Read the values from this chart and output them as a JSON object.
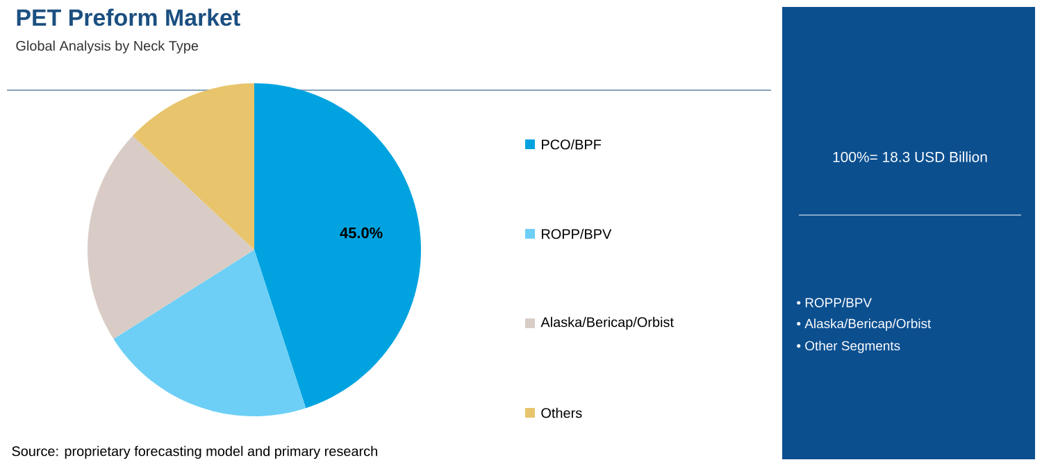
{
  "chart_data": {
    "type": "pie",
    "title": "PET Preform Market",
    "subtitle": "Global Analysis by Neck Type",
    "categories": [
      "PCO/BPF",
      "ROPP/BPV",
      "Alaska/Bericap/Orbist",
      "Others"
    ],
    "values": [
      45.0,
      21,
      21,
      13
    ],
    "colors": [
      "#00a3e0",
      "#6dcff6",
      "#d9ccc6",
      "#e8c46c"
    ],
    "value_labels": [
      "45.0%",
      null,
      null,
      null
    ],
    "legend": "right",
    "annotations": [
      "100%= 18.3 USD Billion",
      "• ROPP/BPV",
      "• Alaska/Bericap/Orbist",
      "• Other Segments",
      "Source: proprietary forecasting model and primary research"
    ]
  }
}
